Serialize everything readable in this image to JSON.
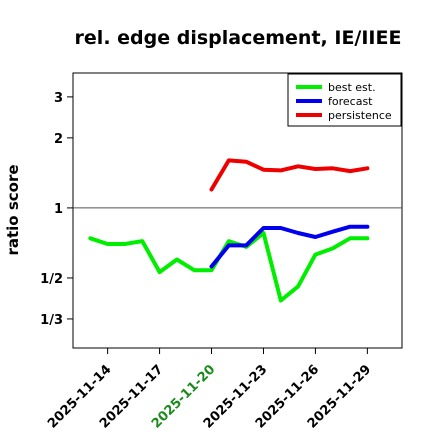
{
  "chart_data": {
    "type": "line",
    "title": "rel. edge displacement, IE/IIEE",
    "xlabel": "",
    "ylabel": "ratio score",
    "y_scale": "log",
    "ylim": [
      0.25,
      3.8
    ],
    "y_ticks": [
      {
        "value": 0.3333,
        "label": "1/3"
      },
      {
        "value": 0.5,
        "label": "1/2"
      },
      {
        "value": 1,
        "label": "1"
      },
      {
        "value": 2,
        "label": "2"
      },
      {
        "value": 3,
        "label": "3"
      }
    ],
    "reference_line": 1,
    "xlim": [
      "2025-11-12",
      "2025-12-01"
    ],
    "x_ticks": [
      {
        "date": "2025-11-14",
        "label": "2025-11-14",
        "color": "#000000"
      },
      {
        "date": "2025-11-17",
        "label": "2025-11-17",
        "color": "#000000"
      },
      {
        "date": "2025-11-20",
        "label": "2025-11-20",
        "color": "#1a8a1a"
      },
      {
        "date": "2025-11-23",
        "label": "2025-11-23",
        "color": "#000000"
      },
      {
        "date": "2025-11-26",
        "label": "2025-11-26",
        "color": "#000000"
      },
      {
        "date": "2025-11-29",
        "label": "2025-11-29",
        "color": "#000000"
      }
    ],
    "series": [
      {
        "name": "best est.",
        "color": "#00ee00",
        "points": [
          {
            "x": "2025-11-13",
            "y": 0.74
          },
          {
            "x": "2025-11-14",
            "y": 0.7
          },
          {
            "x": "2025-11-15",
            "y": 0.7
          },
          {
            "x": "2025-11-16",
            "y": 0.72
          },
          {
            "x": "2025-11-17",
            "y": 0.53
          },
          {
            "x": "2025-11-18",
            "y": 0.6
          },
          {
            "x": "2025-11-19",
            "y": 0.54
          },
          {
            "x": "2025-11-20",
            "y": 0.54
          },
          {
            "x": "2025-11-21",
            "y": 0.72
          },
          {
            "x": "2025-11-22",
            "y": 0.68
          },
          {
            "x": "2025-11-23",
            "y": 0.78
          },
          {
            "x": "2025-11-24",
            "y": 0.4
          },
          {
            "x": "2025-11-25",
            "y": 0.46
          },
          {
            "x": "2025-11-26",
            "y": 0.63
          },
          {
            "x": "2025-11-27",
            "y": 0.67
          },
          {
            "x": "2025-11-28",
            "y": 0.74
          },
          {
            "x": "2025-11-29",
            "y": 0.74
          }
        ]
      },
      {
        "name": "forecast",
        "color": "#0000ee",
        "points": [
          {
            "x": "2025-11-20",
            "y": 0.56
          },
          {
            "x": "2025-11-21",
            "y": 0.69
          },
          {
            "x": "2025-11-22",
            "y": 0.69
          },
          {
            "x": "2025-11-23",
            "y": 0.82
          },
          {
            "x": "2025-11-24",
            "y": 0.82
          },
          {
            "x": "2025-11-25",
            "y": 0.78
          },
          {
            "x": "2025-11-26",
            "y": 0.75
          },
          {
            "x": "2025-11-27",
            "y": 0.79
          },
          {
            "x": "2025-11-28",
            "y": 0.83
          },
          {
            "x": "2025-11-29",
            "y": 0.83
          }
        ]
      },
      {
        "name": "persistence",
        "color": "#ee0000",
        "points": [
          {
            "x": "2025-11-20",
            "y": 1.2
          },
          {
            "x": "2025-11-21",
            "y": 1.6
          },
          {
            "x": "2025-11-22",
            "y": 1.58
          },
          {
            "x": "2025-11-23",
            "y": 1.46
          },
          {
            "x": "2025-11-24",
            "y": 1.45
          },
          {
            "x": "2025-11-25",
            "y": 1.51
          },
          {
            "x": "2025-11-26",
            "y": 1.47
          },
          {
            "x": "2025-11-27",
            "y": 1.48
          },
          {
            "x": "2025-11-28",
            "y": 1.44
          },
          {
            "x": "2025-11-29",
            "y": 1.48
          }
        ]
      }
    ],
    "legend": {
      "position": "top-right"
    },
    "grid": false
  }
}
